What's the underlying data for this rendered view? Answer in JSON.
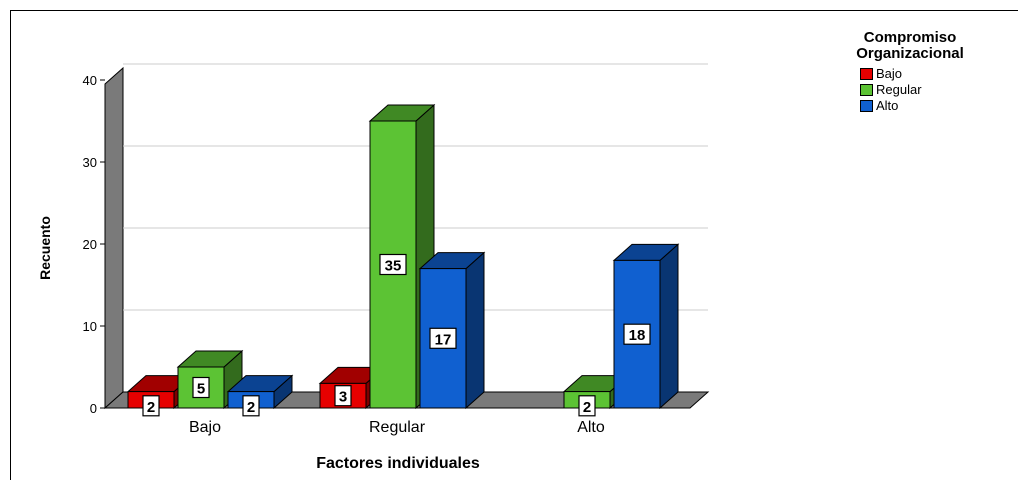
{
  "chart_data": {
    "type": "bar",
    "xlabel": "Factores individuales",
    "ylabel": "Recuento",
    "ylim": [
      0,
      40
    ],
    "yticks": [
      0,
      10,
      20,
      30,
      40
    ],
    "categories": [
      "Bajo",
      "Regular",
      "Alto"
    ],
    "legend_title_lines": [
      "Compromiso",
      "Organizacional"
    ],
    "legend_placement": "top-right",
    "grid": true,
    "three_d": true,
    "series": [
      {
        "name": "Bajo",
        "values": [
          2,
          3,
          0
        ],
        "color": "#e60000"
      },
      {
        "name": "Regular",
        "values": [
          5,
          35,
          2
        ],
        "color": "#5cc334"
      },
      {
        "name": "Alto",
        "values": [
          2,
          17,
          18
        ],
        "color": "#1060d0"
      }
    ]
  }
}
